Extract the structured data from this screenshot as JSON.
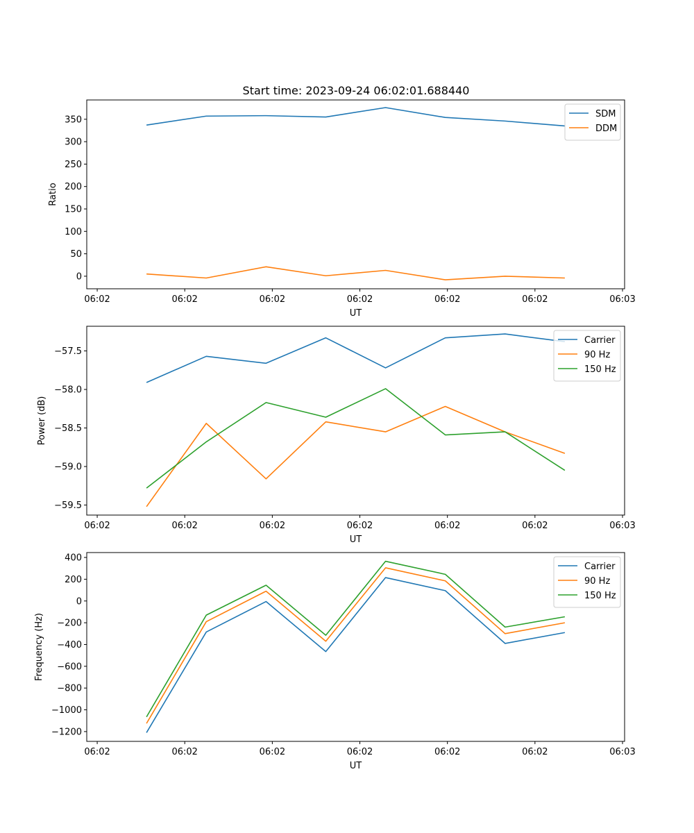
{
  "figure": {
    "title": "Start time: 2023-09-24 06:02:01.688440"
  },
  "chart_data": [
    {
      "type": "line",
      "title": "Start time: 2023-09-24 06:02:01.688440",
      "xlabel": "UT",
      "ylabel": "Ratio",
      "x_tick_labels": [
        "06:02",
        "06:02",
        "06:02",
        "06:02",
        "06:02",
        "06:02",
        "06:03"
      ],
      "x": [
        1,
        2,
        3,
        4,
        5,
        6,
        7,
        8
      ],
      "xlim": [
        0,
        9
      ],
      "ylim": [
        -28,
        393
      ],
      "y_ticks": [
        0,
        50,
        100,
        150,
        200,
        250,
        300,
        350
      ],
      "legend": {
        "location": "upper right"
      },
      "series": [
        {
          "name": "SDM",
          "color": "#1f77b4",
          "values": [
            337,
            357,
            358,
            355,
            376,
            354,
            346,
            335
          ]
        },
        {
          "name": "DDM",
          "color": "#ff7f0e",
          "values": [
            5,
            -4,
            21,
            1,
            13,
            -8,
            0,
            -4
          ]
        }
      ]
    },
    {
      "type": "line",
      "title": "",
      "xlabel": "UT",
      "ylabel": "Power (dB)",
      "x_tick_labels": [
        "06:02",
        "06:02",
        "06:02",
        "06:02",
        "06:02",
        "06:02",
        "06:03"
      ],
      "x": [
        1,
        2,
        3,
        4,
        5,
        6,
        7,
        8
      ],
      "xlim": [
        0,
        9
      ],
      "ylim": [
        -59.63,
        -57.18
      ],
      "y_ticks": [
        -59.5,
        -59.0,
        -58.5,
        -58.0,
        -57.5
      ],
      "y_tick_labels": [
        "−59.5",
        "−59.0",
        "−58.5",
        "−58.0",
        "−57.5"
      ],
      "legend": {
        "location": "upper right"
      },
      "series": [
        {
          "name": "Carrier",
          "color": "#1f77b4",
          "values": [
            -57.91,
            -57.57,
            -57.66,
            -57.33,
            -57.72,
            -57.33,
            -57.28,
            -57.38
          ]
        },
        {
          "name": "90 Hz",
          "color": "#ff7f0e",
          "values": [
            -59.52,
            -58.44,
            -59.16,
            -58.42,
            -58.55,
            -58.22,
            -58.55,
            -58.83
          ]
        },
        {
          "name": "150 Hz",
          "color": "#2ca02c",
          "values": [
            -59.28,
            -58.68,
            -58.17,
            -58.36,
            -57.99,
            -58.59,
            -58.55,
            -59.05
          ]
        }
      ]
    },
    {
      "type": "line",
      "title": "",
      "xlabel": "UT",
      "ylabel": "Frequency (Hz)",
      "x_tick_labels": [
        "06:02",
        "06:02",
        "06:02",
        "06:02",
        "06:02",
        "06:02",
        "06:03"
      ],
      "x": [
        1,
        2,
        3,
        4,
        5,
        6,
        7,
        8
      ],
      "xlim": [
        0,
        9
      ],
      "ylim": [
        -1290,
        445
      ],
      "y_ticks": [
        -1200,
        -1000,
        -800,
        -600,
        -400,
        -200,
        0,
        200,
        400
      ],
      "y_tick_labels": [
        "−1200",
        "−1000",
        "−800",
        "−600",
        "−400",
        "−200",
        "0",
        "200",
        "400"
      ],
      "legend": {
        "location": "upper right"
      },
      "series": [
        {
          "name": "Carrier",
          "color": "#1f77b4",
          "values": [
            -1210,
            -285,
            -5,
            -465,
            215,
            95,
            -390,
            -290
          ]
        },
        {
          "name": "90 Hz",
          "color": "#ff7f0e",
          "values": [
            -1125,
            -190,
            90,
            -370,
            305,
            185,
            -300,
            -200
          ]
        },
        {
          "name": "150 Hz",
          "color": "#2ca02c",
          "values": [
            -1065,
            -130,
            145,
            -315,
            365,
            245,
            -240,
            -145
          ]
        }
      ]
    }
  ]
}
